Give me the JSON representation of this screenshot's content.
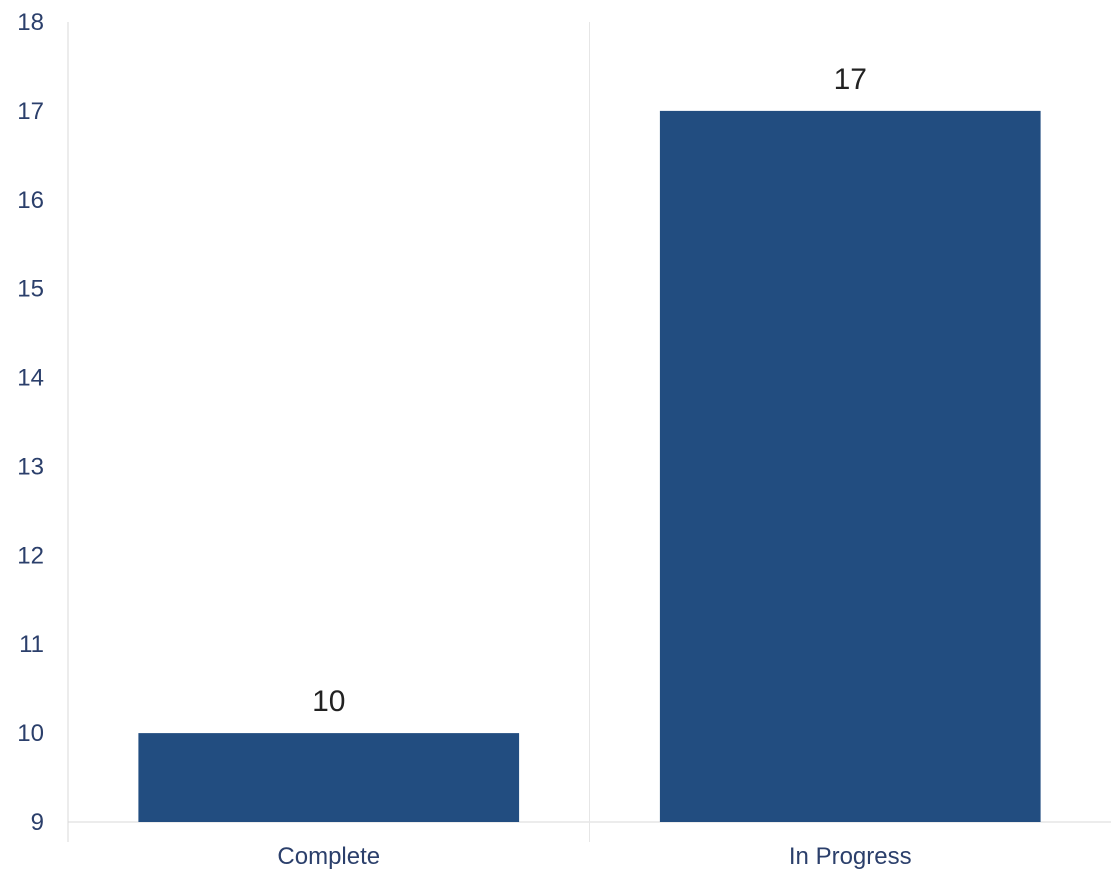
{
  "chart_data": {
    "type": "bar",
    "title": "",
    "xlabel": "",
    "ylabel": "",
    "categories": [
      "Complete",
      "In Progress"
    ],
    "values": [
      10,
      17
    ],
    "data_labels": [
      "10",
      "17"
    ],
    "ylim": [
      9,
      18
    ],
    "yticks": [
      9,
      10,
      11,
      12,
      13,
      14,
      15,
      16,
      17,
      18
    ],
    "ytick_labels": [
      "9",
      "10",
      "11",
      "12",
      "13",
      "14",
      "15",
      "16",
      "17",
      "18"
    ],
    "grid": "vertical category separators",
    "legend": "none",
    "colors": {
      "bar": "#224d80",
      "axis_text": "#2b3f6b",
      "axis_line": "#d9d9d9",
      "data_label": "#222222"
    }
  }
}
